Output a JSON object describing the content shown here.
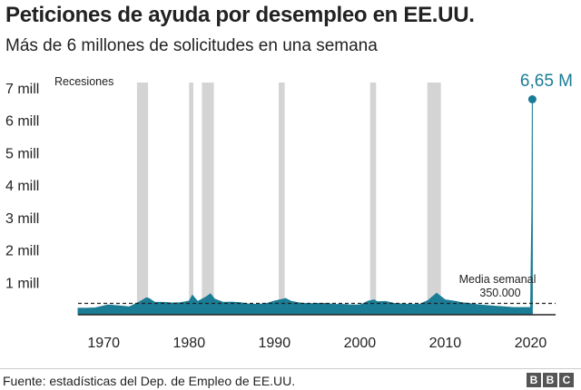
{
  "header": {
    "title": "Peticiones de ayuda por desempleo en EE.UU.",
    "subtitle": "Más de 6 millones de solicitudes en una semana"
  },
  "footer": {
    "source": "Fuente: estadísticas del Dep. de Empleo de EE.UU.",
    "logo_letters": [
      "B",
      "B",
      "C"
    ]
  },
  "colors": {
    "series": "#1a7c95",
    "recession": "#d4d4d4",
    "axis": "#222222",
    "peak_label": "#1a7c95"
  },
  "chart_data": {
    "type": "area",
    "title": "Peticiones de ayuda por desempleo en EE.UU.",
    "subtitle": "Más de 6 millones de solicitudes en una semana",
    "xlabel": "",
    "ylabel": "",
    "xlim": [
      1967,
      2022.5
    ],
    "ylim": [
      0,
      7
    ],
    "x_ticks": [
      1970,
      1980,
      1990,
      2000,
      2010,
      2020
    ],
    "y_ticks": [
      {
        "value": 1,
        "label": "1 mill"
      },
      {
        "value": 2,
        "label": "2 mill"
      },
      {
        "value": 3,
        "label": "3 mill"
      },
      {
        "value": 4,
        "label": "4 mill"
      },
      {
        "value": 5,
        "label": "5 mill"
      },
      {
        "value": 6,
        "label": "6 mill"
      },
      {
        "value": 7,
        "label": "7 mill"
      }
    ],
    "grid": false,
    "recessions_label": "Recesiones",
    "recessions": [
      [
        1973.9,
        1975.2
      ],
      [
        1980.0,
        1980.5
      ],
      [
        1981.5,
        1982.9
      ],
      [
        1990.5,
        1991.2
      ],
      [
        2001.2,
        2001.9
      ],
      [
        2007.9,
        2009.5
      ]
    ],
    "series": [
      {
        "x": [
          1967.0,
          1968.0,
          1969.0,
          1970.0,
          1970.5,
          1971.0,
          1972.0,
          1973.0,
          1974.0,
          1974.5,
          1975.0,
          1975.3,
          1976.0,
          1977.0,
          1978.0,
          1979.0,
          1980.0,
          1980.4,
          1981.0,
          1982.0,
          1982.5,
          1983.0,
          1984.0,
          1985.0,
          1986.0,
          1987.0,
          1988.0,
          1989.0,
          1990.0,
          1991.0,
          1991.3,
          1992.0,
          1993.0,
          1994.0,
          1995.0,
          1996.0,
          1997.0,
          1998.0,
          1999.0,
          2000.0,
          2001.0,
          2001.7,
          2002.0,
          2003.0,
          2004.0,
          2005.0,
          2006.0,
          2007.0,
          2008.0,
          2009.0,
          2009.3,
          2010.0,
          2011.0,
          2012.0,
          2013.0,
          2014.0,
          2015.0,
          2016.0,
          2017.0,
          2018.0,
          2019.0,
          2020.0,
          2020.15,
          2020.2
        ],
        "values": [
          0.2,
          0.2,
          0.21,
          0.27,
          0.3,
          0.29,
          0.27,
          0.24,
          0.37,
          0.44,
          0.52,
          0.5,
          0.38,
          0.38,
          0.36,
          0.37,
          0.42,
          0.6,
          0.41,
          0.55,
          0.64,
          0.48,
          0.38,
          0.39,
          0.37,
          0.33,
          0.32,
          0.34,
          0.42,
          0.48,
          0.5,
          0.41,
          0.36,
          0.34,
          0.35,
          0.35,
          0.32,
          0.32,
          0.3,
          0.3,
          0.42,
          0.46,
          0.4,
          0.41,
          0.35,
          0.33,
          0.32,
          0.32,
          0.44,
          0.66,
          0.6,
          0.46,
          0.42,
          0.37,
          0.34,
          0.3,
          0.28,
          0.26,
          0.24,
          0.22,
          0.22,
          0.22,
          3.3,
          6.65
        ]
      }
    ],
    "reference_line": {
      "value": 0.35,
      "label": [
        "Media semanal",
        "350.000"
      ]
    },
    "peak": {
      "x": 2020.2,
      "value": 6.65,
      "label": "6,65 M"
    }
  }
}
